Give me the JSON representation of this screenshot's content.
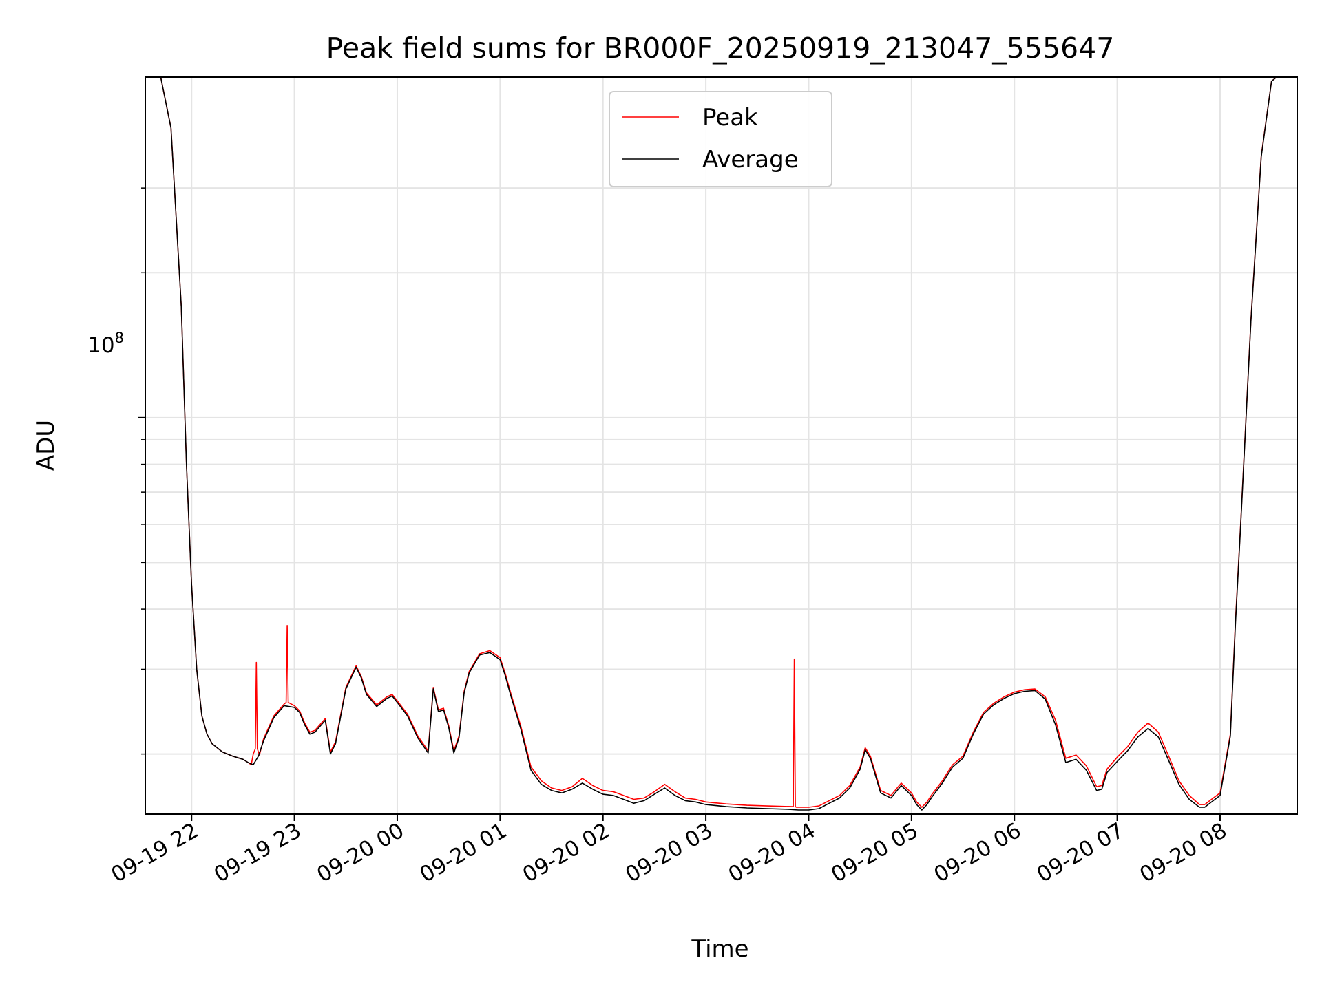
{
  "chart_data": {
    "type": "line",
    "title": "Peak field sums for BR000F_20250919_213047_555647",
    "xlabel": "Time",
    "ylabel": "ADU",
    "yscale": "log",
    "ylim": [
      15000000,
      510000000
    ],
    "xlim": [
      -0.45,
      10.75
    ],
    "grid": true,
    "legend_position": "top-center",
    "x_ticks": [
      {
        "pos": 0,
        "label": "09-19 22"
      },
      {
        "pos": 1,
        "label": "09-19 23"
      },
      {
        "pos": 2,
        "label": "09-20 00"
      },
      {
        "pos": 3,
        "label": "09-20 01"
      },
      {
        "pos": 4,
        "label": "09-20 02"
      },
      {
        "pos": 5,
        "label": "09-20 03"
      },
      {
        "pos": 6,
        "label": "09-20 04"
      },
      {
        "pos": 7,
        "label": "09-20 05"
      },
      {
        "pos": 8,
        "label": "09-20 06"
      },
      {
        "pos": 9,
        "label": "09-20 07"
      },
      {
        "pos": 10,
        "label": "09-20 08"
      }
    ],
    "y_major_tick": {
      "value": 100000000,
      "base": "10",
      "exp": "8"
    },
    "y_minor_ticks": [
      20000000,
      30000000,
      40000000,
      50000000,
      60000000,
      70000000,
      80000000,
      90000000,
      200000000,
      300000000
    ],
    "series": [
      {
        "name": "Peak",
        "color": "#ff0000",
        "x": [
          -0.45,
          -0.3,
          -0.2,
          -0.1,
          -0.05,
          0.0,
          0.05,
          0.1,
          0.15,
          0.2,
          0.3,
          0.4,
          0.5,
          0.55,
          0.58,
          0.6,
          0.62,
          0.63,
          0.64,
          0.66,
          0.7,
          0.8,
          0.9,
          0.92,
          0.93,
          0.94,
          1.0,
          1.05,
          1.1,
          1.15,
          1.2,
          1.3,
          1.35,
          1.4,
          1.5,
          1.6,
          1.65,
          1.7,
          1.8,
          1.9,
          1.95,
          2.0,
          2.1,
          2.2,
          2.3,
          2.35,
          2.4,
          2.45,
          2.5,
          2.55,
          2.6,
          2.65,
          2.7,
          2.8,
          2.9,
          3.0,
          3.05,
          3.1,
          3.2,
          3.3,
          3.4,
          3.5,
          3.6,
          3.7,
          3.8,
          3.9,
          4.0,
          4.1,
          4.2,
          4.3,
          4.4,
          4.5,
          4.6,
          4.7,
          4.8,
          4.9,
          5.0,
          5.2,
          5.4,
          5.6,
          5.85,
          5.86,
          5.87,
          5.88,
          5.9,
          6.0,
          6.1,
          6.2,
          6.3,
          6.4,
          6.5,
          6.55,
          6.6,
          6.7,
          6.8,
          6.9,
          7.0,
          7.05,
          7.1,
          7.15,
          7.2,
          7.3,
          7.35,
          7.4,
          7.5,
          7.6,
          7.7,
          7.8,
          7.9,
          8.0,
          8.1,
          8.2,
          8.3,
          8.4,
          8.5,
          8.6,
          8.7,
          8.8,
          8.85,
          8.9,
          9.0,
          9.1,
          9.2,
          9.3,
          9.4,
          9.5,
          9.6,
          9.7,
          9.8,
          9.85,
          9.9,
          10.0,
          10.1,
          10.15,
          10.2,
          10.3,
          10.4,
          10.5,
          10.55,
          10.6,
          10.75
        ],
        "values": [
          510000000,
          510000000,
          400000000,
          170000000,
          80000000,
          45000000,
          30000000,
          24000000,
          22000000,
          21000000,
          20200000,
          19800000,
          19500000,
          19200000,
          19000000,
          20000000,
          20500000,
          31000000,
          20500000,
          19900000,
          21500000,
          24000000,
          25400000,
          25600000,
          37000000,
          25600000,
          25200000,
          24600000,
          23200000,
          22200000,
          22400000,
          23700000,
          20200000,
          21200000,
          27500000,
          30500000,
          29000000,
          26800000,
          25300000,
          26300000,
          26600000,
          25800000,
          24200000,
          21800000,
          20300000,
          27500000,
          24700000,
          24900000,
          22900000,
          20300000,
          21800000,
          27000000,
          29700000,
          32300000,
          32800000,
          31700000,
          29400000,
          26900000,
          22900000,
          18800000,
          17600000,
          17000000,
          16800000,
          17100000,
          17800000,
          17200000,
          16800000,
          16700000,
          16400000,
          16100000,
          16200000,
          16700000,
          17300000,
          16700000,
          16200000,
          16100000,
          15900000,
          15750000,
          15650000,
          15600000,
          15550000,
          31500000,
          15550000,
          15500000,
          15500000,
          15500000,
          15600000,
          16000000,
          16400000,
          17200000,
          18800000,
          20600000,
          19800000,
          16800000,
          16400000,
          17400000,
          16600000,
          15900000,
          15500000,
          15900000,
          16500000,
          17600000,
          18300000,
          19000000,
          19800000,
          22200000,
          24400000,
          25500000,
          26300000,
          26900000,
          27200000,
          27300000,
          26300000,
          23500000,
          19600000,
          19900000,
          18900000,
          17100000,
          17200000,
          18600000,
          19700000,
          20700000,
          22200000,
          23200000,
          22200000,
          19800000,
          17600000,
          16400000,
          15700000,
          15700000,
          16000000,
          16600000,
          22000000,
          38000000,
          60000000,
          160000000,
          350000000,
          500000000,
          510000000,
          510000000,
          510000000
        ]
      },
      {
        "name": "Average",
        "color": "#000000",
        "x": [
          -0.45,
          -0.3,
          -0.2,
          -0.1,
          -0.05,
          0.0,
          0.05,
          0.1,
          0.15,
          0.2,
          0.3,
          0.4,
          0.5,
          0.55,
          0.6,
          0.65,
          0.7,
          0.8,
          0.9,
          1.0,
          1.05,
          1.1,
          1.15,
          1.2,
          1.3,
          1.35,
          1.4,
          1.5,
          1.6,
          1.65,
          1.7,
          1.8,
          1.9,
          1.95,
          2.0,
          2.1,
          2.2,
          2.3,
          2.35,
          2.4,
          2.45,
          2.5,
          2.55,
          2.6,
          2.65,
          2.7,
          2.8,
          2.9,
          3.0,
          3.05,
          3.1,
          3.2,
          3.3,
          3.4,
          3.5,
          3.6,
          3.7,
          3.8,
          3.9,
          4.0,
          4.1,
          4.2,
          4.3,
          4.4,
          4.5,
          4.6,
          4.7,
          4.8,
          4.9,
          5.0,
          5.2,
          5.4,
          5.6,
          5.8,
          5.9,
          6.0,
          6.1,
          6.2,
          6.3,
          6.4,
          6.5,
          6.55,
          6.6,
          6.7,
          6.8,
          6.9,
          7.0,
          7.05,
          7.1,
          7.15,
          7.2,
          7.3,
          7.35,
          7.4,
          7.5,
          7.6,
          7.7,
          7.8,
          7.9,
          8.0,
          8.1,
          8.2,
          8.3,
          8.4,
          8.5,
          8.6,
          8.7,
          8.8,
          8.85,
          8.9,
          9.0,
          9.1,
          9.2,
          9.3,
          9.4,
          9.5,
          9.6,
          9.7,
          9.8,
          9.85,
          9.9,
          10.0,
          10.1,
          10.15,
          10.2,
          10.3,
          10.4,
          10.5,
          10.55,
          10.6,
          10.75
        ],
        "values": [
          510000000,
          510000000,
          400000000,
          170000000,
          80000000,
          45000000,
          30000000,
          24000000,
          22000000,
          21000000,
          20200000,
          19800000,
          19500000,
          19200000,
          19000000,
          19800000,
          21300000,
          23800000,
          25200000,
          25000000,
          24400000,
          23000000,
          22000000,
          22200000,
          23500000,
          20000000,
          21000000,
          27300000,
          30300000,
          28800000,
          26600000,
          25100000,
          26100000,
          26400000,
          25600000,
          24000000,
          21600000,
          20100000,
          27300000,
          24500000,
          24700000,
          22700000,
          20100000,
          21600000,
          26800000,
          29500000,
          32100000,
          32500000,
          31400000,
          29100000,
          26600000,
          22600000,
          18500000,
          17300000,
          16800000,
          16600000,
          16900000,
          17400000,
          16900000,
          16500000,
          16400000,
          16100000,
          15800000,
          16000000,
          16500000,
          17000000,
          16400000,
          16000000,
          15900000,
          15700000,
          15550000,
          15450000,
          15400000,
          15350000,
          15300000,
          15300000,
          15400000,
          15800000,
          16200000,
          17000000,
          18600000,
          20400000,
          19600000,
          16600000,
          16200000,
          17200000,
          16400000,
          15700000,
          15300000,
          15700000,
          16300000,
          17400000,
          18100000,
          18800000,
          19600000,
          22000000,
          24200000,
          25300000,
          26100000,
          26700000,
          27000000,
          27100000,
          26000000,
          23000000,
          19200000,
          19500000,
          18500000,
          16800000,
          16900000,
          18300000,
          19300000,
          20300000,
          21700000,
          22600000,
          21700000,
          19400000,
          17300000,
          16100000,
          15500000,
          15500000,
          15800000,
          16400000,
          21800000,
          37500000,
          59500000,
          159000000,
          348000000,
          500000000,
          510000000,
          510000000,
          510000000
        ]
      }
    ]
  }
}
